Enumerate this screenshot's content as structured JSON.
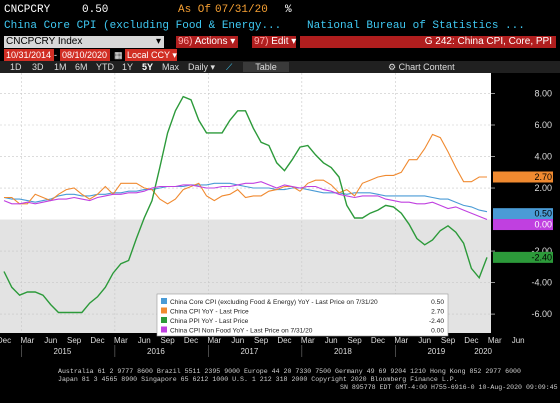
{
  "header": {
    "ticker": "CNCPCRY",
    "value": "0.50",
    "as_of_label": "As Of",
    "as_of_date": "07/31/20",
    "pct": "%",
    "description": "China Core CPI (excluding Food & Energy...",
    "source": "National Bureau of Statistics ..."
  },
  "toolbar": {
    "index_ticker": "CNCPCRY Index",
    "actions_num": "96)",
    "actions_label": "Actions",
    "edit_num": "97)",
    "edit_label": "Edit",
    "chart_title": "G 242: China CPI, Core, PPI",
    "date_from": "10/31/2014",
    "date_to": "08/10/2020",
    "currency": "Local CCY",
    "periods": [
      "1D",
      "3D",
      "1M",
      "6M",
      "YTD",
      "1Y",
      "5Y",
      "Max"
    ],
    "selected_period": "5Y",
    "frequency": "Daily",
    "table_label": "Table",
    "chart_content_label": "Chart Content"
  },
  "colors": {
    "core_cpi": "#4a9bd6",
    "cpi": "#f08a30",
    "ppi": "#2c9a3a",
    "nonfood": "#c040e0",
    "background": "#ffffff",
    "negative_band": "#e3e3e3"
  },
  "chart_data": {
    "type": "line",
    "x_labels_months": [
      "Dec",
      "Mar",
      "Jun",
      "Sep",
      "Dec",
      "Mar",
      "Jun",
      "Sep",
      "Dec",
      "Mar",
      "Jun",
      "Sep",
      "Dec",
      "Mar",
      "Jun",
      "Sep",
      "Dec",
      "Mar",
      "Jun",
      "Sep",
      "Dec",
      "Mar",
      "Jun"
    ],
    "x_labels_years": [
      "2015",
      "2016",
      "2017",
      "2018",
      "2019",
      "2020"
    ],
    "y_ticks": [
      "8.00",
      "6.00",
      "4.00",
      "2.00",
      "-2.00",
      "-4.00",
      "-6.00"
    ],
    "ylim": [
      -7.2,
      9.3
    ],
    "series": [
      {
        "name": "China Core CPI (excluding Food & Energy) YoY - Last Price on 7/31/20",
        "last": "0.50",
        "values": [
          1.4,
          1.3,
          1.3,
          1.2,
          1.1,
          1.2,
          1.3,
          1.5,
          1.6,
          1.6,
          1.5,
          1.5,
          1.6,
          1.6,
          1.7,
          1.7,
          1.8,
          1.8,
          1.9,
          1.9,
          2.0,
          2.1,
          2.1,
          2.1,
          2.2,
          2.2,
          2.2,
          2.3,
          2.3,
          2.3,
          2.2,
          2.1,
          2.0,
          2.0,
          2.0,
          1.9,
          1.9,
          2.0,
          2.0,
          1.9,
          1.8,
          1.7,
          1.7,
          1.7,
          1.6,
          1.7,
          1.7,
          1.7,
          1.6,
          1.5,
          1.5,
          1.5,
          1.5,
          1.5,
          1.5,
          1.4,
          1.3,
          1.3,
          1.1,
          0.9,
          0.8,
          0.6,
          0.5
        ]
      },
      {
        "name": "China CPI YoY - Last Price",
        "last": "2.70",
        "values": [
          1.4,
          1.4,
          1.0,
          1.0,
          1.6,
          1.4,
          1.2,
          1.6,
          1.9,
          2.0,
          1.6,
          1.3,
          1.6,
          2.1,
          1.6,
          2.3,
          2.3,
          2.3,
          2.0,
          1.9,
          1.3,
          1.0,
          1.3,
          1.9,
          2.1,
          2.3,
          1.5,
          1.2,
          1.5,
          1.6,
          1.9,
          1.4,
          1.5,
          1.5,
          1.8,
          1.9,
          2.1,
          2.1,
          1.8,
          2.3,
          2.5,
          2.5,
          2.2,
          1.7,
          1.9,
          1.5,
          2.3,
          2.5,
          2.7,
          2.8,
          2.8,
          3.0,
          3.8,
          3.8,
          4.5,
          5.4,
          5.2,
          4.3,
          3.3,
          2.4,
          2.4,
          2.7,
          2.7
        ]
      },
      {
        "name": "China PPI YoY - Last Price",
        "last": "-2.40",
        "values": [
          -3.3,
          -4.3,
          -4.8,
          -4.6,
          -4.6,
          -4.8,
          -5.4,
          -5.9,
          -5.9,
          -5.9,
          -5.9,
          -5.3,
          -4.9,
          -4.3,
          -3.4,
          -2.8,
          -2.6,
          -1.2,
          0.1,
          1.2,
          3.3,
          5.5,
          6.9,
          7.8,
          7.6,
          6.3,
          5.5,
          5.5,
          5.5,
          6.3,
          6.9,
          6.9,
          5.8,
          4.9,
          4.7,
          3.6,
          3.1,
          3.8,
          4.6,
          4.7,
          4.1,
          3.6,
          3.3,
          2.7,
          0.9,
          0.1,
          0.1,
          0.4,
          0.6,
          0.9,
          0.8,
          0.4,
          -0.3,
          -1.2,
          -1.6,
          -1.3,
          -0.7,
          -0.4,
          -0.8,
          -1.5,
          -3.1,
          -3.7,
          -2.4
        ]
      },
      {
        "name": "China CPI Non Food YoY - Last Price on 7/31/20",
        "last": "0.00",
        "values": [
          1.2,
          1.0,
          1.0,
          1.1,
          1.0,
          1.1,
          1.2,
          1.3,
          1.3,
          1.4,
          1.3,
          1.2,
          1.4,
          1.5,
          1.6,
          1.6,
          1.7,
          1.7,
          1.8,
          2.0,
          2.1,
          2.1,
          2.1,
          2.2,
          2.2,
          2.1,
          2.0,
          2.0,
          2.1,
          2.1,
          2.2,
          2.3,
          2.3,
          2.4,
          2.2,
          2.0,
          2.2,
          2.1,
          2.0,
          2.1,
          2.1,
          1.9,
          1.8,
          1.6,
          1.5,
          1.4,
          1.5,
          1.5,
          1.5,
          1.3,
          1.2,
          1.1,
          1.1,
          1.0,
          1.0,
          1.1,
          0.9,
          0.7,
          0.8,
          0.6,
          0.4,
          0.2,
          0.0
        ]
      }
    ]
  },
  "footer": {
    "line1": "Australia 61 2 9777 8600  Brazil 5511 2395 9000  Europe 44 20 7330 7500  Germany 49 69 9204 1210  Hong Kong 852 2977 6000",
    "line2": "Japan 81 3 4565 8900        Singapore 65 6212 1000        U.S. 1 212 318 2000              Copyright 2020 Bloomberg Finance L.P.",
    "line3": "SN 895778 EDT  GMT-4:00 H755-6916-0 10-Aug-2020 09:09:45"
  }
}
